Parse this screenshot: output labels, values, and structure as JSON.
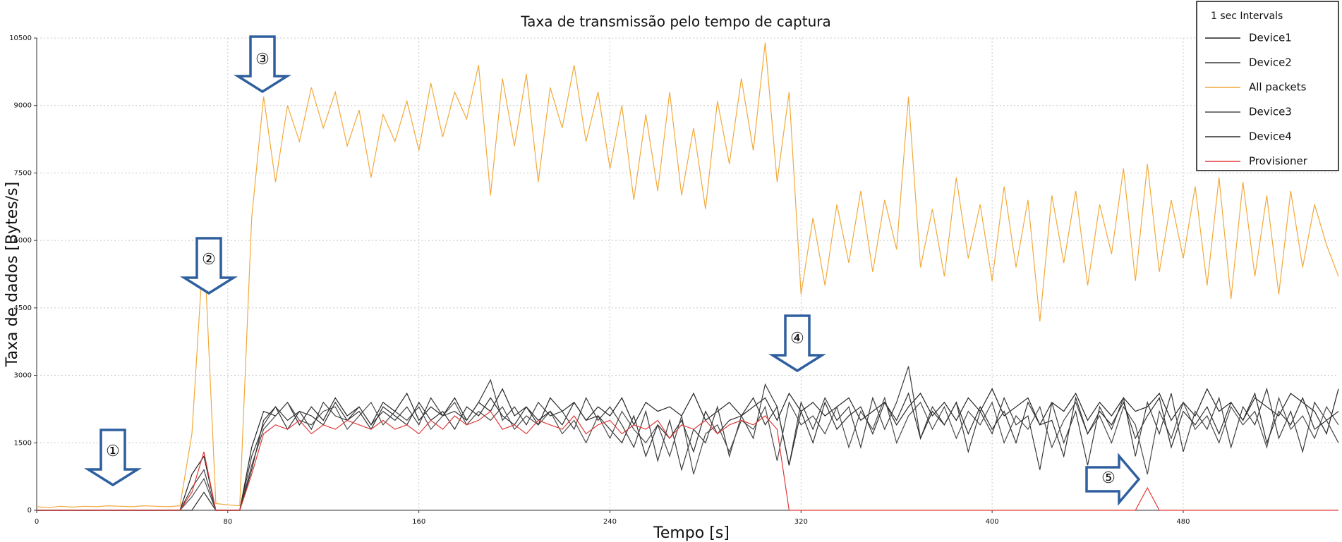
{
  "chart_data": {
    "type": "line",
    "title": "Taxa de transmissão pelo tempo de captura",
    "x_label": "Tempo [s]",
    "y_label": "Taxa de dados [Bytes/s]",
    "legend_title": "1 sec Intervals",
    "legend": "upper right",
    "grid": true,
    "xlim": [
      0,
      545
    ],
    "ylim": [
      0,
      10500
    ],
    "xticks": [
      0,
      80,
      160,
      240,
      320,
      400,
      480
    ],
    "yticks": [
      0,
      1500,
      3000,
      4500,
      6000,
      7500,
      9000,
      10500
    ],
    "annotations": [
      "①",
      "②",
      "③",
      "④",
      "⑤"
    ],
    "x": [
      0,
      5,
      10,
      15,
      20,
      25,
      30,
      35,
      40,
      45,
      50,
      55,
      60,
      65,
      70,
      75,
      80,
      85,
      90,
      95,
      100,
      105,
      110,
      115,
      120,
      125,
      130,
      135,
      140,
      145,
      150,
      155,
      160,
      165,
      170,
      175,
      180,
      185,
      190,
      195,
      200,
      205,
      210,
      215,
      220,
      225,
      230,
      235,
      240,
      245,
      250,
      255,
      260,
      265,
      270,
      275,
      280,
      285,
      290,
      295,
      300,
      305,
      310,
      315,
      320,
      325,
      330,
      335,
      340,
      345,
      350,
      355,
      360,
      365,
      370,
      375,
      380,
      385,
      390,
      395,
      400,
      405,
      410,
      415,
      420,
      425,
      430,
      435,
      440,
      445,
      450,
      455,
      460,
      465,
      470,
      475,
      480,
      485,
      490,
      495,
      500,
      505,
      510,
      515,
      520,
      525,
      530,
      535,
      540,
      545
    ],
    "series": [
      {
        "name": "Device1",
        "color": "#222222",
        "values": [
          0,
          0,
          0,
          0,
          0,
          0,
          0,
          0,
          0,
          0,
          0,
          0,
          0,
          800,
          1200,
          0,
          0,
          0,
          1400,
          2200,
          2100,
          2400,
          1900,
          2300,
          2000,
          2500,
          2100,
          2300,
          1900,
          2400,
          2200,
          2600,
          2000,
          2300,
          2100,
          2500,
          2000,
          2400,
          2200,
          2700,
          2100,
          2300,
          1900,
          2500,
          2200,
          2400,
          2000,
          2300,
          2100,
          2500,
          1900,
          2400,
          2200,
          2300,
          2100,
          2600,
          2000,
          2200,
          2400,
          2100,
          2300,
          2500,
          2000,
          2600,
          2200,
          2400,
          2100,
          2300,
          2500,
          2000,
          2200,
          2400,
          1900,
          2300,
          2600,
          2100,
          2400,
          2000,
          2500,
          2200,
          2700,
          2100,
          2300,
          2500,
          1900,
          2400,
          2200,
          2600,
          2000,
          2400,
          2100,
          2500,
          2200,
          2300,
          2600,
          2000,
          2400,
          2100,
          2700,
          2200,
          2400,
          2000,
          2500,
          2300,
          2100,
          2600,
          2400,
          2200,
          1700,
          2700
        ]
      },
      {
        "name": "Device2",
        "color": "#3a3a3a",
        "values": [
          0,
          0,
          0,
          0,
          0,
          0,
          0,
          0,
          0,
          0,
          0,
          0,
          0,
          500,
          900,
          0,
          0,
          0,
          1200,
          1900,
          2300,
          2000,
          2200,
          1800,
          2400,
          2100,
          2000,
          2300,
          1900,
          2200,
          2000,
          2300,
          1900,
          2500,
          2100,
          2200,
          2000,
          2400,
          2900,
          2000,
          2300,
          1900,
          2400,
          2100,
          2200,
          1800,
          2500,
          2000,
          2300,
          1900,
          1400,
          2200,
          1100,
          2000,
          900,
          1800,
          1500,
          2300,
          1200,
          2100,
          1600,
          2800,
          2300,
          1000,
          2400,
          1800,
          2500,
          2000,
          2300,
          1400,
          2500,
          1800,
          2400,
          3200,
          1600,
          2300,
          1900,
          2400,
          1300,
          2200,
          1700,
          2500,
          1900,
          2100,
          900,
          2400,
          1500,
          2200,
          1000,
          2300,
          1800,
          2500,
          1200,
          2400,
          1700,
          2600,
          1300,
          2200,
          1800,
          2500,
          1400,
          2300,
          1900,
          2700,
          1600,
          2200,
          1300,
          2400,
          2000,
          1500
        ]
      },
      {
        "name": "All packets",
        "color": "#f2a93b",
        "values": [
          80,
          60,
          90,
          70,
          90,
          80,
          100,
          90,
          80,
          100,
          90,
          80,
          100,
          1700,
          6000,
          150,
          120,
          100,
          6500,
          9200,
          7300,
          9000,
          8200,
          9400,
          8500,
          9300,
          8100,
          8900,
          7400,
          8800,
          8200,
          9100,
          8000,
          9500,
          8300,
          9300,
          8700,
          9900,
          7000,
          9600,
          8100,
          9700,
          7300,
          9400,
          8500,
          9900,
          8200,
          9300,
          7600,
          9000,
          6900,
          8800,
          7100,
          9300,
          7000,
          8500,
          6700,
          9100,
          7700,
          9600,
          8000,
          10400,
          7300,
          9300,
          4800,
          6500,
          5000,
          6800,
          5500,
          7100,
          5300,
          6900,
          5800,
          9200,
          5400,
          6700,
          5200,
          7400,
          5600,
          6800,
          5100,
          7200,
          5400,
          6900,
          4200,
          7000,
          5500,
          7100,
          5000,
          6800,
          5700,
          7600,
          5100,
          7700,
          5300,
          6900,
          5600,
          7200,
          5000,
          7400,
          4700,
          7300,
          5200,
          7000,
          4800,
          7100,
          5400,
          6800,
          5900,
          5200
        ]
      },
      {
        "name": "Device3",
        "color": "#4a4a4a",
        "values": [
          0,
          0,
          0,
          0,
          0,
          0,
          0,
          0,
          0,
          0,
          0,
          0,
          0,
          300,
          700,
          0,
          0,
          0,
          1000,
          1800,
          2100,
          2400,
          2000,
          1900,
          2200,
          2300,
          1800,
          2100,
          2400,
          1900,
          2200,
          2000,
          2300,
          1800,
          2100,
          2400,
          1900,
          2200,
          2000,
          2300,
          1800,
          2100,
          1900,
          2200,
          1700,
          2000,
          1500,
          2100,
          1600,
          2200,
          1800,
          1500,
          1900,
          1200,
          2100,
          800,
          1700,
          1900,
          1300,
          2000,
          1800,
          2300,
          1100,
          2400,
          1900,
          2100,
          1700,
          2300,
          1400,
          2200,
          1800,
          2500,
          1500,
          2100,
          2400,
          1800,
          2300,
          1600,
          2200,
          1900,
          2400,
          1500,
          2100,
          1800,
          2300,
          1400,
          2000,
          2400,
          1700,
          2100,
          1500,
          2300,
          1900,
          800,
          2200,
          1600,
          2400,
          1800,
          2100,
          1500,
          2300,
          1900,
          2200,
          1400,
          2500,
          1800,
          2100,
          1600,
          2300,
          1900
        ]
      },
      {
        "name": "Device4",
        "color": "#2e2e2e",
        "values": [
          0,
          0,
          0,
          0,
          0,
          0,
          0,
          0,
          0,
          0,
          0,
          0,
          0,
          0,
          400,
          0,
          0,
          0,
          900,
          2000,
          2300,
          1800,
          2200,
          2100,
          1900,
          2400,
          2000,
          2200,
          1800,
          2300,
          2100,
          1900,
          2400,
          2000,
          2200,
          1800,
          2300,
          2100,
          2500,
          2100,
          1900,
          2300,
          2000,
          2200,
          1900,
          2400,
          2000,
          2100,
          1800,
          1500,
          2100,
          1200,
          1900,
          1600,
          2000,
          1300,
          2200,
          1700,
          2000,
          2100,
          2500,
          1900,
          2300,
          1000,
          2200,
          1500,
          2400,
          1800,
          2100,
          2300,
          1700,
          2400,
          2000,
          2600,
          1600,
          2200,
          1900,
          2400,
          1700,
          2300,
          1800,
          2200,
          1500,
          2400,
          1900,
          2000,
          1200,
          2500,
          1700,
          2200,
          1900,
          2400,
          1600,
          2100,
          2500,
          1400,
          2200,
          1900,
          2300,
          1700,
          2400,
          2000,
          2600,
          1500,
          2200,
          1900,
          2500,
          1800,
          2000,
          2200
        ]
      },
      {
        "name": "Provisioner",
        "color": "#e03a3a",
        "values": [
          0,
          0,
          0,
          0,
          0,
          0,
          0,
          0,
          0,
          0,
          0,
          0,
          0,
          400,
          1300,
          0,
          0,
          0,
          800,
          1700,
          1900,
          1800,
          2000,
          1700,
          1900,
          1800,
          2000,
          1900,
          1800,
          2000,
          1800,
          1900,
          1700,
          2000,
          1800,
          2100,
          1900,
          2000,
          2200,
          1800,
          1900,
          1700,
          2000,
          1900,
          1800,
          2100,
          1700,
          1900,
          2000,
          1700,
          1900,
          1800,
          2000,
          1600,
          1900,
          1800,
          2000,
          1700,
          1900,
          2000,
          1900,
          2100,
          1800,
          0,
          0,
          0,
          0,
          0,
          0,
          0,
          0,
          0,
          0,
          0,
          0,
          0,
          0,
          0,
          0,
          0,
          0,
          0,
          0,
          0,
          0,
          0,
          0,
          0,
          0,
          0,
          0,
          0,
          0,
          500,
          0,
          0,
          0,
          0,
          0,
          0,
          0,
          0,
          0,
          0,
          0,
          0,
          0,
          0,
          0,
          0
        ]
      }
    ]
  }
}
